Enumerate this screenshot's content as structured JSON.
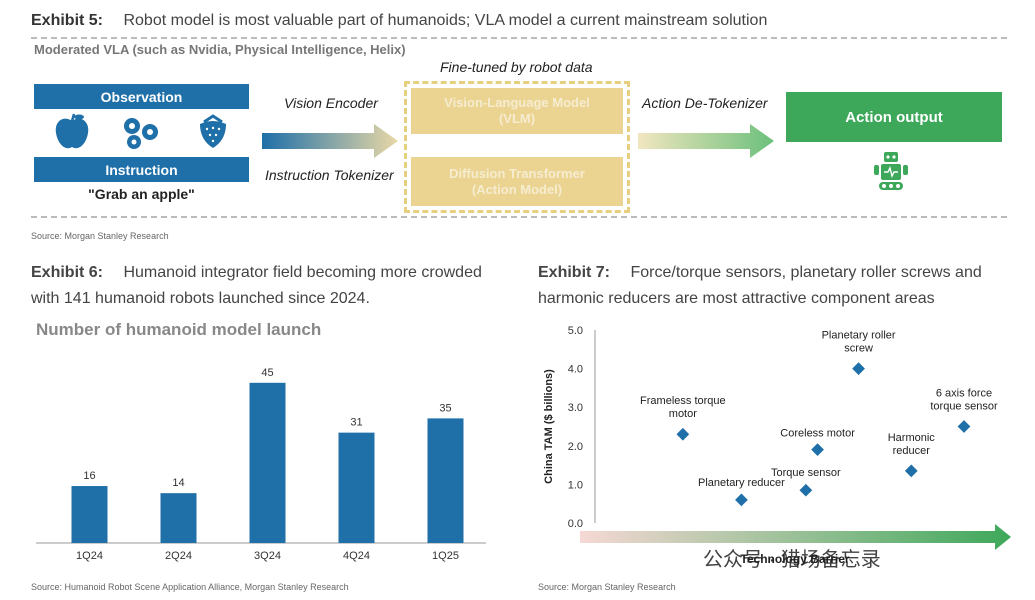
{
  "exhibit5": {
    "label": "Exhibit 5:",
    "title": "Robot model is most valuable part of humanoids; VLA model a current mainstream solution",
    "header": "Moderated VLA (such as Nvidia, Physical Intelligence, Helix)",
    "observation": "Observation",
    "instruction": "Instruction",
    "quote": "\"Grab an apple\"",
    "vision_encoder": "Vision Encoder",
    "instruction_tokenizer": "Instruction Tokenizer",
    "finetuned": "Fine-tuned by robot data",
    "vlm_line1": "Vision-Language Model",
    "vlm_line2": "(VLM)",
    "diff_line1": "Diffusion Transformer",
    "diff_line2": "(Action Model)",
    "detokenizer": "Action De-Tokenizer",
    "action_output": "Action output",
    "source": "Source: Morgan Stanley Research"
  },
  "exhibit6": {
    "label": "Exhibit 6:",
    "title_line1": "Humanoid integrator field becoming more crowded",
    "title_line2": "with 141 humanoid robots launched since 2024.",
    "source": "Source: Humanoid Robot Scene Application Alliance, Morgan Stanley Research"
  },
  "exhibit7": {
    "label": "Exhibit 7:",
    "title_line1": "Force/torque sensors, planetary roller screws and",
    "title_line2": "harmonic reducers are most attractive component areas",
    "source": "Source: Morgan Stanley Research"
  },
  "watermark": "公众号 · 猎场备忘录",
  "colors": {
    "blue": "#1f6fa8",
    "green": "#3da85a",
    "yellow": "#ebd391"
  },
  "chart_data": [
    {
      "type": "bar",
      "title": "Number of humanoid model launch",
      "categories": [
        "1Q24",
        "2Q24",
        "3Q24",
        "4Q24",
        "1Q25"
      ],
      "values": [
        16,
        14,
        45,
        31,
        35
      ],
      "ylim": [
        0,
        50
      ],
      "grid": false
    },
    {
      "type": "scatter",
      "xlabel": "Technology Barrier",
      "ylabel": "China TAM ($ billions)",
      "ylim": [
        0,
        5
      ],
      "yticks": [
        "5.0",
        "4.0",
        "3.0",
        "2.0",
        "1.0",
        "0.0"
      ],
      "points": [
        {
          "label": "Frameless torque motor",
          "x": 1.5,
          "y": 2.3
        },
        {
          "label": "Planetary reducer",
          "x": 2.5,
          "y": 0.6
        },
        {
          "label": "Torque sensor",
          "x": 3.6,
          "y": 0.85
        },
        {
          "label": "Coreless motor",
          "x": 3.8,
          "y": 1.9
        },
        {
          "label": "Planetary roller screw",
          "x": 4.5,
          "y": 4.0
        },
        {
          "label": "Harmonic reducer",
          "x": 5.4,
          "y": 1.35
        },
        {
          "label": "6 axis force torque sensor",
          "x": 6.3,
          "y": 2.5
        }
      ]
    }
  ]
}
